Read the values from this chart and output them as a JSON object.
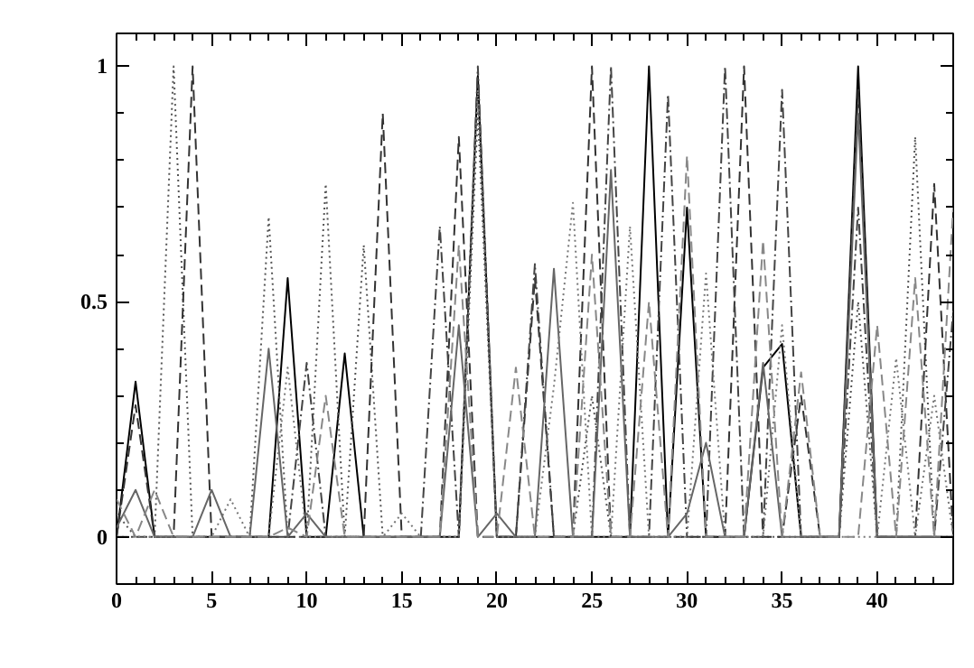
{
  "chart_data": {
    "type": "line",
    "x": [
      0,
      1,
      2,
      3,
      4,
      5,
      6,
      7,
      8,
      9,
      10,
      11,
      12,
      13,
      14,
      15,
      16,
      17,
      18,
      19,
      20,
      21,
      22,
      23,
      24,
      25,
      26,
      27,
      28,
      29,
      30,
      31,
      32,
      33,
      34,
      35,
      36,
      37,
      38,
      39,
      40,
      41,
      42,
      43,
      44
    ],
    "xlim": [
      0,
      44
    ],
    "ylim": [
      -0.1,
      1.07
    ],
    "xticks": [
      0,
      {
        "value": 1,
        "label": null
      },
      {
        "value": 2,
        "label": null
      },
      {
        "value": 3,
        "label": null
      },
      {
        "value": 4,
        "label": null
      },
      5,
      {
        "value": 6,
        "label": null
      },
      {
        "value": 7,
        "label": null
      },
      {
        "value": 8,
        "label": null
      },
      {
        "value": 9,
        "label": null
      },
      10,
      {
        "value": 11,
        "label": null
      },
      {
        "value": 12,
        "label": null
      },
      {
        "value": 13,
        "label": null
      },
      {
        "value": 14,
        "label": null
      },
      15,
      {
        "value": 16,
        "label": null
      },
      {
        "value": 17,
        "label": null
      },
      {
        "value": 18,
        "label": null
      },
      {
        "value": 19,
        "label": null
      },
      20,
      {
        "value": 21,
        "label": null
      },
      {
        "value": 22,
        "label": null
      },
      {
        "value": 23,
        "label": null
      },
      {
        "value": 24,
        "label": null
      },
      25,
      {
        "value": 26,
        "label": null
      },
      {
        "value": 27,
        "label": null
      },
      {
        "value": 28,
        "label": null
      },
      {
        "value": 29,
        "label": null
      },
      30,
      {
        "value": 31,
        "label": null
      },
      {
        "value": 32,
        "label": null
      },
      {
        "value": 33,
        "label": null
      },
      {
        "value": 34,
        "label": null
      },
      35,
      {
        "value": 36,
        "label": null
      },
      {
        "value": 37,
        "label": null
      },
      {
        "value": 38,
        "label": null
      },
      {
        "value": 39,
        "label": null
      },
      40,
      {
        "value": 41,
        "label": null
      },
      {
        "value": 42,
        "label": null
      },
      {
        "value": 43,
        "label": null
      }
    ],
    "yticks": [
      {
        "value": -0.1,
        "label": null
      },
      0,
      {
        "value": 0.1,
        "label": null
      },
      {
        "value": 0.2,
        "label": null
      },
      {
        "value": 0.3,
        "label": null
      },
      {
        "value": 0.4,
        "label": null
      },
      0.5,
      {
        "value": 0.6,
        "label": null
      },
      {
        "value": 0.7,
        "label": null
      },
      {
        "value": 0.8,
        "label": null
      },
      {
        "value": 0.9,
        "label": null
      },
      1
    ],
    "grid": false,
    "marker": "none",
    "series": [
      {
        "color": "#000000",
        "line_style": "solid",
        "values": [
          0,
          0.33,
          0,
          0,
          0,
          0,
          0,
          0,
          0,
          0.55,
          0,
          0,
          0.39,
          0,
          0,
          0,
          0,
          0,
          0,
          0.98,
          0,
          0,
          0,
          0,
          0,
          0,
          0,
          0,
          1,
          0,
          0.7,
          0,
          0,
          0,
          0.36,
          0.41,
          0,
          0,
          0,
          1,
          0,
          0,
          0,
          0,
          0
        ]
      },
      {
        "color": "#555555",
        "line_style": "dotted",
        "values": [
          0.05,
          0,
          0,
          1,
          0,
          0,
          0,
          0,
          0.68,
          0,
          0,
          0.75,
          0,
          0.62,
          0,
          0,
          0,
          0,
          0,
          0.9,
          0,
          0,
          0,
          0,
          0,
          0.3,
          0,
          0,
          0,
          0,
          0,
          0,
          0,
          0,
          0,
          0,
          0,
          0,
          0,
          0.5,
          0,
          0,
          0.85,
          0,
          0
        ]
      },
      {
        "color": "#333333",
        "line_style": "dashed",
        "values": [
          0,
          0.28,
          0,
          0,
          1,
          0,
          0,
          0,
          0,
          0,
          0,
          0,
          0,
          0,
          0.9,
          0,
          0,
          0,
          0.85,
          0,
          0,
          0,
          0.55,
          0,
          0,
          1,
          0,
          0,
          0,
          0,
          0,
          0,
          0,
          1,
          0,
          0,
          0.3,
          0,
          0,
          0.95,
          0,
          0,
          0,
          0.75,
          0
        ]
      },
      {
        "color": "#444444",
        "line_style": "dashdot",
        "values": [
          0,
          0,
          0,
          0,
          0,
          0,
          0,
          0,
          0,
          0,
          0.37,
          0,
          0,
          0,
          0,
          0,
          0,
          0.66,
          0,
          1,
          0,
          0,
          0.58,
          0,
          0,
          0,
          1,
          0,
          0,
          0.94,
          0,
          0,
          1,
          0,
          0,
          0.95,
          0,
          0,
          0,
          0.7,
          0,
          0,
          0,
          0,
          0.48
        ]
      },
      {
        "color": "#666666",
        "line_style": "solid",
        "values": [
          0.02,
          0.1,
          0,
          0,
          0,
          0.1,
          0,
          0,
          0.4,
          0,
          0.05,
          0,
          0,
          0,
          0,
          0,
          0,
          0,
          0.45,
          0,
          0.05,
          0,
          0,
          0.57,
          0,
          0,
          0.78,
          0,
          0,
          0,
          0.05,
          0.2,
          0,
          0,
          0.37,
          0,
          0,
          0,
          0,
          0.9,
          0,
          0,
          0,
          0,
          0
        ]
      },
      {
        "color": "#777777",
        "line_style": "dotted",
        "values": [
          0,
          0,
          0,
          0,
          0,
          0,
          0.08,
          0,
          0,
          0.36,
          0,
          0,
          0,
          0,
          0,
          0.05,
          0,
          0,
          0,
          0.95,
          0,
          0,
          0,
          0.32,
          0.71,
          0,
          0,
          0.66,
          0,
          0,
          0,
          0.56,
          0,
          0,
          0,
          0.45,
          0,
          0,
          0,
          0,
          0,
          0.38,
          0,
          0.3,
          0
        ]
      },
      {
        "color": "#888888",
        "line_style": "dashed",
        "values": [
          0.08,
          0,
          0.1,
          0,
          0,
          0,
          0,
          0,
          0,
          0.02,
          0,
          0.3,
          0,
          0,
          0,
          0,
          0,
          0,
          0.62,
          0,
          0,
          0.36,
          0,
          0,
          0,
          0.6,
          0,
          0,
          0.5,
          0,
          0.81,
          0,
          0,
          0,
          0.63,
          0,
          0.35,
          0,
          0,
          0,
          0.45,
          0,
          0.55,
          0,
          0.7
        ]
      }
    ]
  }
}
